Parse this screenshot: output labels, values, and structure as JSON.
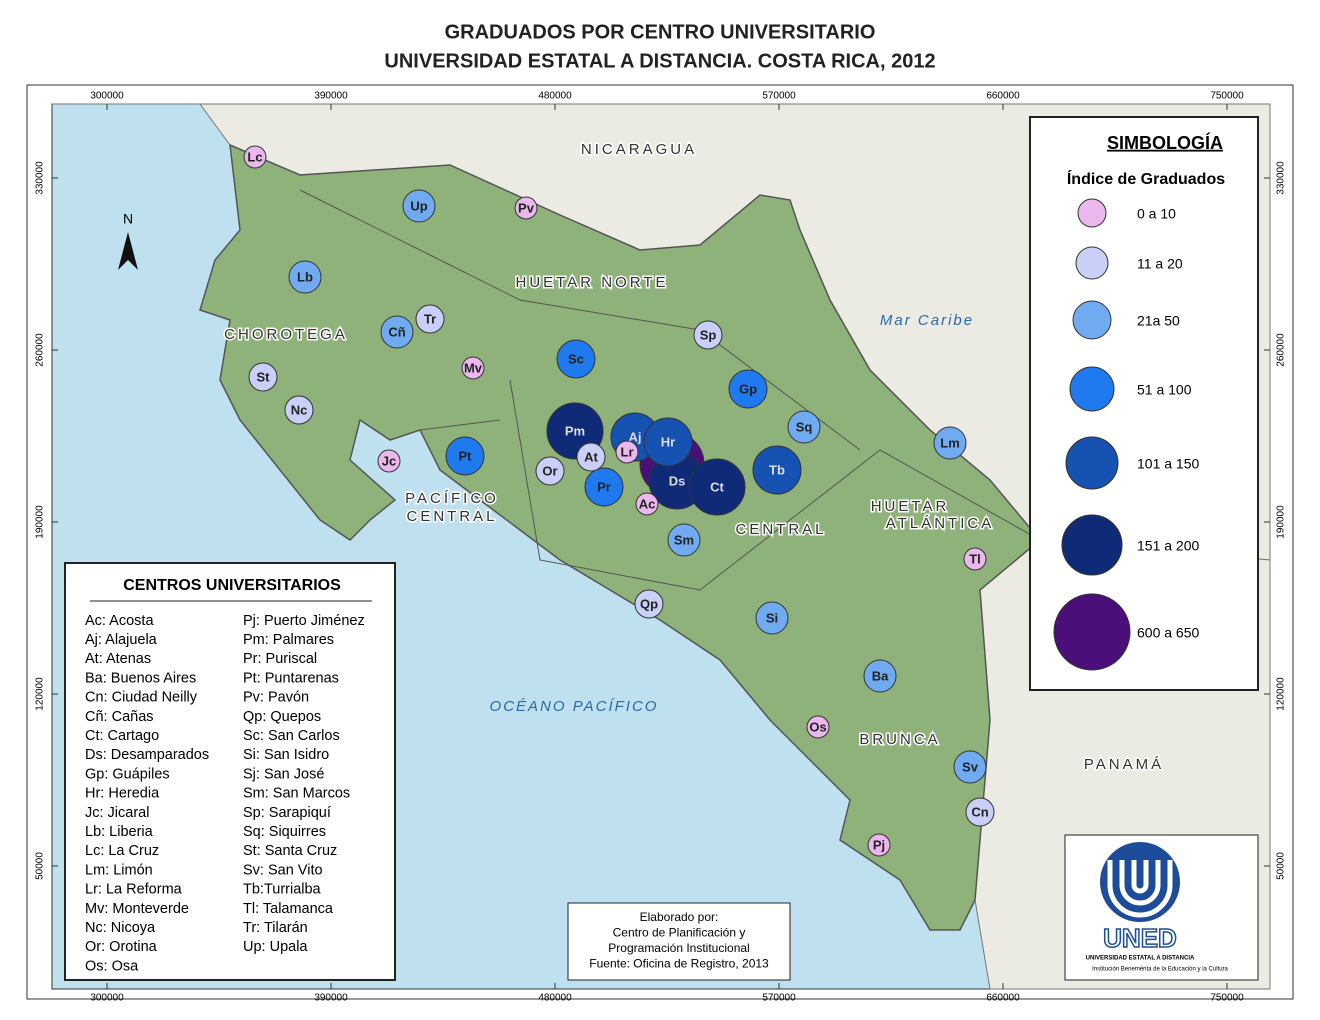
{
  "title": [
    "GRADUADOS POR CENTRO UNIVERSITARIO",
    "UNIVERSIDAD ESTATAL A DISTANCIA. COSTA RICA, 2012"
  ],
  "grid": {
    "xticks": [
      300000,
      390000,
      480000,
      570000,
      660000,
      750000
    ],
    "yticks": [
      330000,
      260000,
      190000,
      120000,
      50000
    ]
  },
  "north": "N",
  "regions": [
    "NICARAGUA",
    "HUETAR NORTE",
    "Mar Caribe",
    "CHOROTEGA",
    "PACÍFICO",
    "CENTRAL",
    "CENTRAL",
    "HUETAR",
    "ATLÁNTICA",
    "OCÉANO PACÍFICO",
    "BRUNCA",
    "PANAMÁ"
  ],
  "legend": {
    "title": "SIMBOLOGÍA",
    "subtitle": "Índice de Graduados",
    "classes": [
      {
        "label": "0 a 10",
        "color": "#eab8ec"
      },
      {
        "label": "11 a 20",
        "color": "#c9cff6"
      },
      {
        "label": "21a 50",
        "color": "#70aaf0"
      },
      {
        "label": "51 a 100",
        "color": "#1f7af0"
      },
      {
        "label": "101 a 150",
        "color": "#1652b2"
      },
      {
        "label": "151 a 200",
        "color": "#0f2a76"
      },
      {
        "label": "600 a 650",
        "color": "#4a0f78"
      }
    ]
  },
  "markers": [
    "Lc",
    "Up",
    "Pv",
    "Lb",
    "Tr",
    "Cñ",
    "Sp",
    "Sc",
    "Mv",
    "St",
    "Gp",
    "Nc",
    "Sq",
    "Pm",
    "Aj",
    "Hr",
    "Lm",
    "Pt",
    "At",
    "Lr",
    "Jc",
    "Sj",
    "Ds",
    "Ct",
    "Tb",
    "Or",
    "Pr",
    "Ac",
    "Sm",
    "Tl",
    "Qp",
    "Si",
    "Ba",
    "Os",
    "Sv",
    "Cn",
    "Pj"
  ],
  "centers_legend": {
    "title": "CENTROS UNIVERSITARIOS",
    "items": [
      "Ac: Acosta",
      "Aj: Alajuela",
      "At: Atenas",
      "Ba: Buenos Aires",
      "Cn: Ciudad Neilly",
      "Cñ: Cañas",
      "Ct: Cartago",
      "Ds: Desamparados",
      "Gp: Guápiles",
      "Hr: Heredia",
      "Jc: Jicaral",
      "Lb: Liberia",
      "Lc: La Cruz",
      "Lm: Limón",
      "Lr: La Reforma",
      "Mv: Monteverde",
      "Nc: Nicoya",
      "Or: Orotina",
      "Os: Osa",
      "Pj: Puerto Jiménez",
      "Pm: Palmares",
      "Pr: Puriscal",
      "Pt: Puntarenas",
      "Pv: Pavón",
      "Qp: Quepos",
      "Sc: San Carlos",
      "Si: San Isidro",
      "Sj: San José",
      "Sm: San Marcos",
      "Sp: Sarapiquí",
      "Sq: Siquirres",
      "St: Santa Cruz",
      "Sv: San Vito",
      "Tb:Turrialba",
      "Tl: Talamanca",
      "Tr: Tilarán",
      "Up: Upala"
    ]
  },
  "credits": [
    "Elaborado por:",
    "Centro de Planificación y",
    "Programación Institucional",
    "Fuente: Oficina de Registro, 2013"
  ],
  "logo": {
    "name": "UNED",
    "line1": "UNIVERSIDAD ESTATAL A DISTANCIA",
    "line2": "Institución Benemérita de la Educación y la Cultura"
  }
}
